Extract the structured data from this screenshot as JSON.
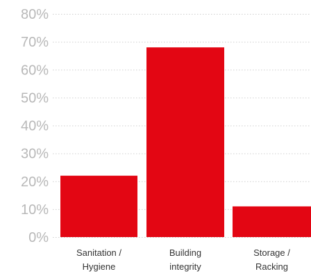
{
  "chart_data": {
    "type": "bar",
    "categories": [
      [
        "Sanitation /",
        "Hygiene"
      ],
      [
        "Building",
        "integrity"
      ],
      [
        "Storage /",
        "Racking"
      ]
    ],
    "values": [
      22,
      68,
      11
    ],
    "y_tick_labels": [
      "0%",
      "10%",
      "20%",
      "30%",
      "40%",
      "50%",
      "60%",
      "70%",
      "80%"
    ],
    "ylim": [
      0,
      80
    ],
    "ytick_step": 10,
    "grid": true,
    "legend": "none",
    "title": "",
    "xlabel": "",
    "ylabel": "",
    "colors": {
      "bar": "#e30613",
      "grid": "#cfcfcf",
      "tick_text": "#b8b8b8",
      "category_text": "#333333"
    }
  }
}
